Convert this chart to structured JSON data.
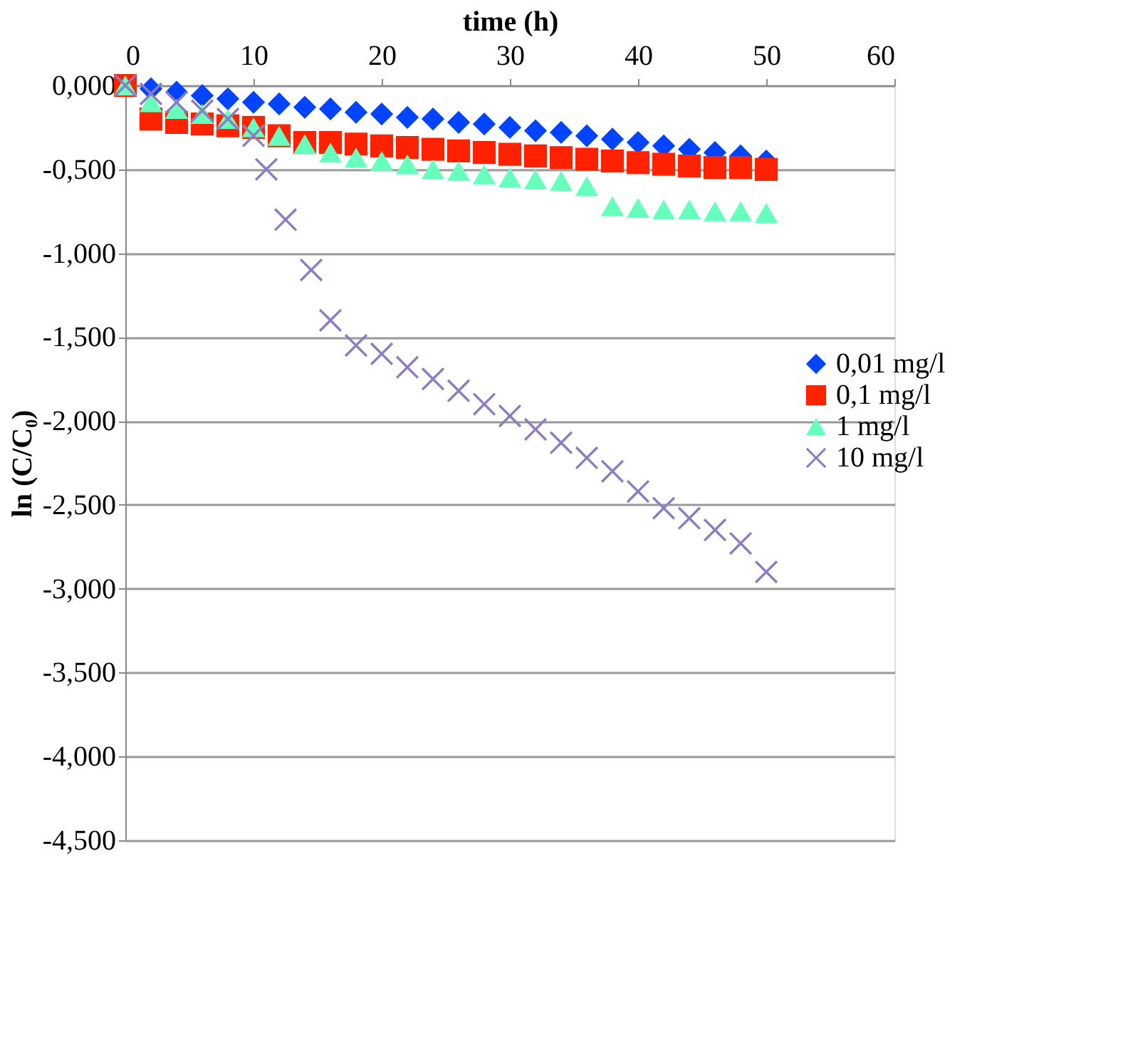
{
  "chart_data": {
    "type": "scatter",
    "xlabel": "time (h)",
    "ylabel": "ln (C/C₀)",
    "xlim": [
      0,
      60
    ],
    "xticks": [
      0,
      10,
      20,
      30,
      40,
      50,
      60
    ],
    "ylim": [
      -4.5,
      0
    ],
    "yticks": [
      {
        "value": 0,
        "label": "0,000"
      },
      {
        "value": -0.5,
        "label": "-0,500"
      },
      {
        "value": -1,
        "label": "-1,000"
      },
      {
        "value": -1.5,
        "label": "-1,500"
      },
      {
        "value": -2,
        "label": "-2,000"
      },
      {
        "value": -2.5,
        "label": "-2,500"
      },
      {
        "value": -3,
        "label": "-3,000"
      },
      {
        "value": -3.5,
        "label": "-3,500"
      },
      {
        "value": -4,
        "label": "-4,000"
      },
      {
        "value": -4.5,
        "label": "-4,500"
      }
    ],
    "grid": "y",
    "legend": "right",
    "series": [
      {
        "name": "0,01 mg/l",
        "color": "#0044ff",
        "marker": "diamond",
        "x": [
          2,
          4,
          6,
          8,
          10,
          12,
          14,
          16,
          18,
          20,
          22,
          24,
          26,
          28,
          30,
          32,
          34,
          36,
          38,
          40,
          42,
          44,
          46,
          48,
          50
        ],
        "values": [
          -0.02,
          -0.04,
          -0.06,
          -0.08,
          -0.1,
          -0.11,
          -0.13,
          -0.14,
          -0.16,
          -0.17,
          -0.19,
          -0.2,
          -0.22,
          -0.23,
          -0.25,
          -0.27,
          -0.28,
          -0.3,
          -0.32,
          -0.34,
          -0.36,
          -0.38,
          -0.4,
          -0.42,
          -0.45
        ]
      },
      {
        "name": "0,1 mg/l",
        "color": "#ff2200",
        "marker": "square",
        "x": [
          0,
          2,
          4,
          6,
          8,
          10,
          12,
          14,
          16,
          18,
          20,
          22,
          24,
          26,
          28,
          30,
          32,
          34,
          36,
          38,
          40,
          42,
          44,
          46,
          48,
          50
        ],
        "values": [
          0,
          -0.2,
          -0.22,
          -0.23,
          -0.24,
          -0.25,
          -0.3,
          -0.34,
          -0.34,
          -0.35,
          -0.36,
          -0.37,
          -0.38,
          -0.39,
          -0.4,
          -0.41,
          -0.42,
          -0.43,
          -0.44,
          -0.45,
          -0.46,
          -0.47,
          -0.48,
          -0.49,
          -0.49,
          -0.5
        ]
      },
      {
        "name": "1 mg/l",
        "color": "#66ffbb",
        "marker": "triangle",
        "x": [
          0,
          2,
          4,
          6,
          8,
          10,
          12,
          14,
          16,
          18,
          20,
          22,
          24,
          26,
          28,
          30,
          32,
          34,
          36,
          38,
          40,
          42,
          44,
          46,
          48,
          50
        ],
        "values": [
          0,
          -0.1,
          -0.14,
          -0.17,
          -0.2,
          -0.25,
          -0.3,
          -0.35,
          -0.4,
          -0.43,
          -0.45,
          -0.47,
          -0.5,
          -0.51,
          -0.53,
          -0.55,
          -0.56,
          -0.57,
          -0.6,
          -0.72,
          -0.73,
          -0.74,
          -0.74,
          -0.75,
          -0.75,
          -0.76
        ]
      },
      {
        "name": "10 mg/l",
        "color": "#8e7cc3",
        "marker": "cross",
        "x": [
          0,
          2,
          4,
          6,
          8,
          10,
          11,
          12.5,
          14.5,
          16,
          18,
          20,
          22,
          24,
          26,
          28,
          30,
          32,
          34,
          36,
          38,
          40,
          42,
          44,
          46,
          48,
          50
        ],
        "values": [
          0,
          -0.05,
          -0.1,
          -0.15,
          -0.2,
          -0.3,
          -0.5,
          -0.8,
          -1.1,
          -1.4,
          -1.55,
          -1.6,
          -1.68,
          -1.75,
          -1.82,
          -1.9,
          -1.97,
          -2.05,
          -2.13,
          -2.22,
          -2.3,
          -2.42,
          -2.52,
          -2.58,
          -2.65,
          -2.73,
          -2.9
        ]
      }
    ]
  }
}
